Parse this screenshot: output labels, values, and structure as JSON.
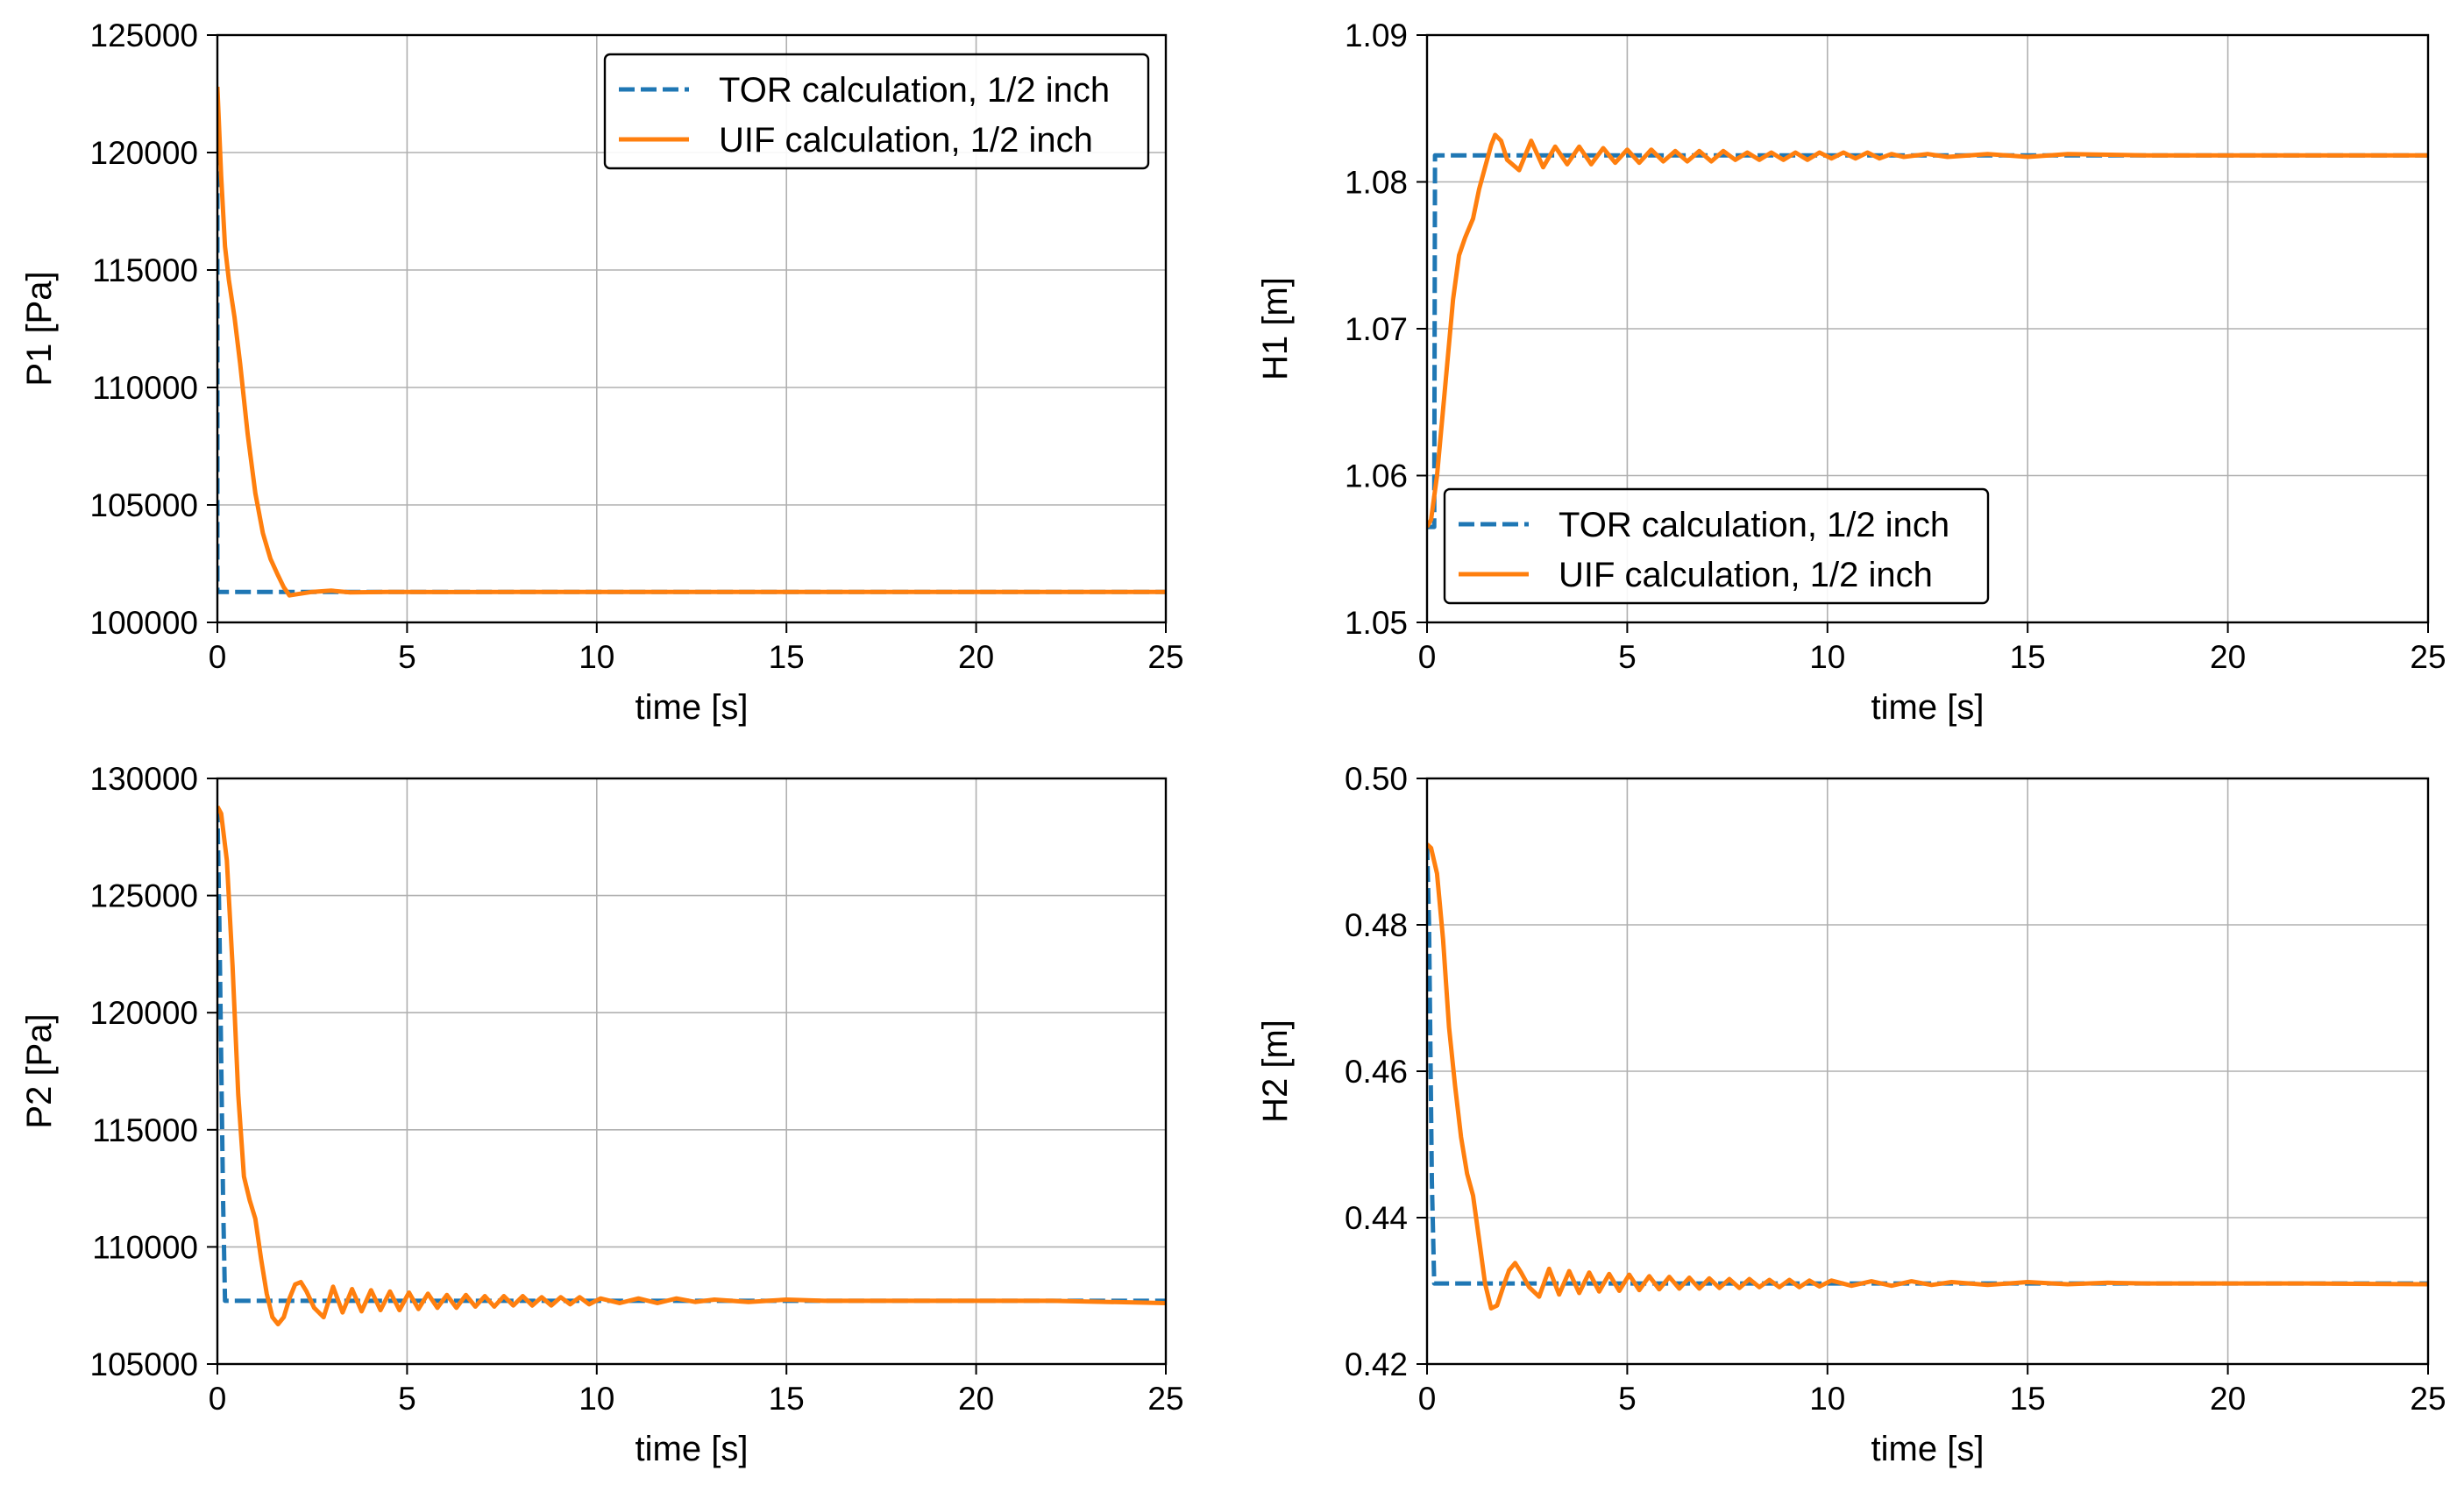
{
  "chart_data": [
    {
      "id": "p1",
      "type": "line",
      "title": "",
      "xlabel": "time [s]",
      "ylabel": "P1 [Pa]",
      "xlim": [
        0,
        25
      ],
      "ylim": [
        100000,
        125000
      ],
      "xticks": [
        0,
        5,
        10,
        15,
        20,
        25
      ],
      "yticks": [
        100000,
        105000,
        110000,
        115000,
        120000,
        125000
      ],
      "grid": true,
      "legend_position": "top-right",
      "series": [
        {
          "name": "TOR calculation, 1/2 inch",
          "color": "#1f77b4",
          "style": "dashed",
          "x": [
            0,
            0.0001,
            25
          ],
          "y": [
            122000,
            101300,
            101300
          ]
        },
        {
          "name": "UIF calculation, 1/2 inch",
          "color": "#ff7f0e",
          "style": "solid",
          "x": [
            0,
            0.1,
            0.2,
            0.3,
            0.45,
            0.6,
            0.8,
            1.0,
            1.2,
            1.4,
            1.6,
            1.75,
            1.9,
            2.1,
            2.5,
            3.0,
            3.5,
            4.5,
            6,
            8,
            10,
            12,
            15,
            20,
            25
          ],
          "y": [
            122800,
            119000,
            116000,
            114600,
            113000,
            111000,
            108000,
            105500,
            103800,
            102700,
            102000,
            101500,
            101150,
            101200,
            101300,
            101350,
            101280,
            101300,
            101290,
            101300,
            101300,
            101300,
            101300,
            101300,
            101300
          ]
        }
      ]
    },
    {
      "id": "h1",
      "type": "line",
      "title": "",
      "xlabel": "time [s]",
      "ylabel": "H1 [m]",
      "xlim": [
        0,
        25
      ],
      "ylim": [
        1.05,
        1.09
      ],
      "xticks": [
        0,
        5,
        10,
        15,
        20,
        25
      ],
      "yticks": [
        1.05,
        1.06,
        1.07,
        1.08,
        1.09
      ],
      "grid": true,
      "legend_position": "bottom-left",
      "series": [
        {
          "name": "TOR calculation, 1/2 inch",
          "color": "#1f77b4",
          "style": "dashed",
          "x": [
            0,
            0.18,
            0.2,
            25
          ],
          "y": [
            1.0565,
            1.0565,
            1.0818,
            1.0818
          ]
        },
        {
          "name": "UIF calculation, 1/2 inch",
          "color": "#ff7f0e",
          "style": "solid",
          "x": [
            0,
            0.1,
            0.25,
            0.45,
            0.65,
            0.8,
            0.95,
            1.15,
            1.3,
            1.45,
            1.6,
            1.7,
            1.85,
            2.0,
            2.3,
            2.6,
            2.9,
            3.2,
            3.5,
            3.8,
            4.1,
            4.4,
            4.7,
            5.0,
            5.3,
            5.6,
            5.9,
            6.2,
            6.5,
            6.8,
            7.1,
            7.4,
            7.7,
            8.0,
            8.3,
            8.6,
            8.9,
            9.2,
            9.5,
            9.8,
            10.1,
            10.4,
            10.7,
            11.0,
            11.3,
            11.6,
            11.9,
            12.5,
            13,
            14,
            15,
            16,
            18,
            20,
            22,
            25
          ],
          "y": [
            1.0565,
            1.057,
            1.06,
            1.066,
            1.072,
            1.075,
            1.0762,
            1.0775,
            1.0795,
            1.081,
            1.0825,
            1.0832,
            1.0828,
            1.0815,
            1.0808,
            1.0828,
            1.081,
            1.0824,
            1.0812,
            1.0824,
            1.0812,
            1.0823,
            1.0813,
            1.0822,
            1.0813,
            1.0822,
            1.0814,
            1.0821,
            1.0814,
            1.0821,
            1.0814,
            1.0821,
            1.0815,
            1.082,
            1.0815,
            1.082,
            1.0815,
            1.082,
            1.0815,
            1.082,
            1.0816,
            1.082,
            1.0816,
            1.082,
            1.0816,
            1.0819,
            1.0817,
            1.0819,
            1.0817,
            1.0819,
            1.0817,
            1.0819,
            1.0818,
            1.0818,
            1.0818,
            1.0818
          ]
        }
      ]
    },
    {
      "id": "p2",
      "type": "line",
      "title": "",
      "xlabel": "time [s]",
      "ylabel": "P2 [Pa]",
      "xlim": [
        0,
        25
      ],
      "ylim": [
        105000,
        130000
      ],
      "xticks": [
        0,
        5,
        10,
        15,
        20,
        25
      ],
      "yticks": [
        105000,
        110000,
        115000,
        120000,
        125000,
        130000
      ],
      "grid": true,
      "legend_position": "none",
      "series": [
        {
          "name": "TOR calculation, 1/2 inch",
          "color": "#1f77b4",
          "style": "dashed",
          "x": [
            0,
            0.05,
            0.15,
            0.2,
            25
          ],
          "y": [
            128800,
            124000,
            112000,
            107700,
            107700
          ]
        },
        {
          "name": "UIF calculation, 1/2 inch",
          "color": "#ff7f0e",
          "style": "solid",
          "x": [
            0,
            0.1,
            0.25,
            0.4,
            0.55,
            0.7,
            0.85,
            1.0,
            1.15,
            1.3,
            1.45,
            1.6,
            1.75,
            1.9,
            2.05,
            2.2,
            2.35,
            2.55,
            2.8,
            3.05,
            3.3,
            3.55,
            3.8,
            4.05,
            4.3,
            4.55,
            4.8,
            5.05,
            5.3,
            5.55,
            5.8,
            6.05,
            6.3,
            6.55,
            6.8,
            7.05,
            7.3,
            7.55,
            7.8,
            8.05,
            8.3,
            8.55,
            8.8,
            9.05,
            9.3,
            9.55,
            9.8,
            10.1,
            10.6,
            11.1,
            11.6,
            12.1,
            12.6,
            13.1,
            14,
            15,
            16,
            17,
            18,
            20,
            22,
            25
          ],
          "y": [
            128800,
            128500,
            126500,
            122000,
            116500,
            113000,
            112000,
            111200,
            109500,
            108000,
            107000,
            106700,
            107000,
            107800,
            108400,
            108500,
            108100,
            107400,
            107000,
            108300,
            107200,
            108200,
            107250,
            108150,
            107300,
            108100,
            107300,
            108050,
            107350,
            108000,
            107400,
            107950,
            107400,
            107950,
            107450,
            107900,
            107450,
            107900,
            107500,
            107900,
            107500,
            107850,
            107500,
            107850,
            107550,
            107850,
            107550,
            107800,
            107600,
            107800,
            107600,
            107800,
            107650,
            107750,
            107650,
            107750,
            107700,
            107700,
            107700,
            107700,
            107700,
            107600
          ]
        }
      ]
    },
    {
      "id": "h2",
      "type": "line",
      "title": "",
      "xlabel": "time [s]",
      "ylabel": "H2 [m]",
      "xlim": [
        0,
        25
      ],
      "ylim": [
        0.42,
        0.5
      ],
      "xticks": [
        0,
        5,
        10,
        15,
        20,
        25
      ],
      "yticks": [
        0.42,
        0.44,
        0.46,
        0.48,
        0.5
      ],
      "grid": true,
      "legend_position": "none",
      "series": [
        {
          "name": "TOR calculation, 1/2 inch",
          "color": "#1f77b4",
          "style": "dashed",
          "x": [
            0,
            0.05,
            0.12,
            0.18,
            25
          ],
          "y": [
            0.491,
            0.48,
            0.445,
            0.431,
            0.431
          ]
        },
        {
          "name": "UIF calculation, 1/2 inch",
          "color": "#ff7f0e",
          "style": "solid",
          "x": [
            0,
            0.1,
            0.25,
            0.4,
            0.55,
            0.7,
            0.85,
            1.0,
            1.15,
            1.3,
            1.45,
            1.6,
            1.75,
            1.9,
            2.05,
            2.2,
            2.35,
            2.55,
            2.8,
            3.05,
            3.3,
            3.55,
            3.8,
            4.05,
            4.3,
            4.55,
            4.8,
            5.05,
            5.3,
            5.55,
            5.8,
            6.05,
            6.3,
            6.55,
            6.8,
            7.05,
            7.3,
            7.55,
            7.8,
            8.05,
            8.3,
            8.55,
            8.8,
            9.05,
            9.3,
            9.55,
            9.8,
            10.1,
            10.6,
            11.1,
            11.6,
            12.1,
            12.6,
            13.1,
            14,
            15,
            16,
            17,
            18,
            20,
            22,
            25
          ],
          "y": [
            0.491,
            0.4905,
            0.487,
            0.478,
            0.466,
            0.458,
            0.451,
            0.446,
            0.443,
            0.437,
            0.431,
            0.4276,
            0.428,
            0.4305,
            0.4328,
            0.4338,
            0.4325,
            0.4305,
            0.4292,
            0.433,
            0.4295,
            0.4327,
            0.4297,
            0.4325,
            0.4299,
            0.4323,
            0.43,
            0.4322,
            0.4301,
            0.432,
            0.4302,
            0.4319,
            0.4303,
            0.4318,
            0.4303,
            0.4317,
            0.4304,
            0.4316,
            0.4304,
            0.4316,
            0.4305,
            0.4315,
            0.4305,
            0.4315,
            0.4305,
            0.4314,
            0.4306,
            0.4314,
            0.4307,
            0.4313,
            0.4307,
            0.4313,
            0.4308,
            0.4312,
            0.4308,
            0.4312,
            0.4309,
            0.4311,
            0.431,
            0.431,
            0.431,
            0.4309
          ]
        }
      ]
    }
  ]
}
